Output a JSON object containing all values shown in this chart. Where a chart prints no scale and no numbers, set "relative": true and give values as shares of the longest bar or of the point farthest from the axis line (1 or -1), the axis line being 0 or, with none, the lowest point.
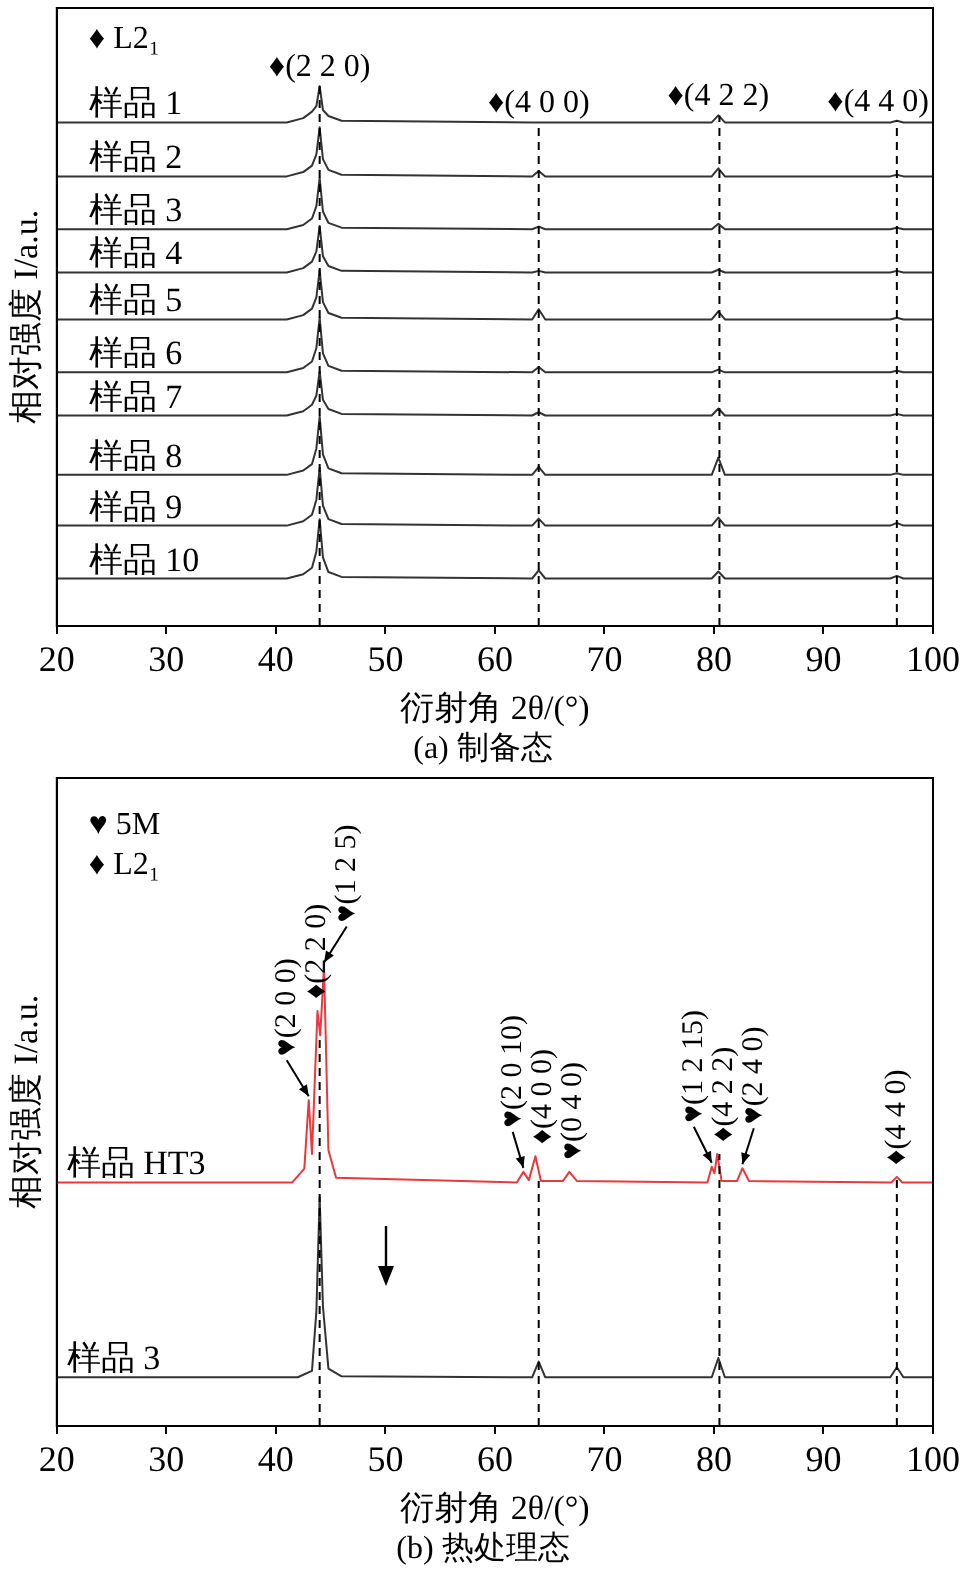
{
  "chart_data": [
    {
      "type": "line",
      "title": "(a) 制备态",
      "xlabel": "衍射角 2θ/(°)",
      "ylabel": "相对强度 I/a.u.",
      "relative": true,
      "tick_labels": "x",
      "xlim": [
        20,
        100
      ],
      "xticks": [
        20,
        30,
        40,
        50,
        60,
        70,
        80,
        90,
        100
      ],
      "x": [
        20,
        41,
        42.5,
        43.3,
        43.7,
        44.0,
        44.3,
        44.8,
        46,
        63.4,
        64.0,
        64.6,
        79.8,
        80.4,
        81.0,
        96.1,
        96.7,
        97.3,
        100
      ],
      "series": [
        {
          "name": "样品 1",
          "color": "#333333",
          "values": [
            0.933,
            0.933,
            0.941,
            0.953,
            0.963,
            1.0,
            0.956,
            0.945,
            0.936,
            0.933,
            0.933,
            0.933,
            0.933,
            0.946,
            0.933,
            0.933,
            0.936,
            0.933,
            0.933
          ]
        },
        {
          "name": "样品 2",
          "color": "#333333",
          "values": [
            0.833,
            0.833,
            0.841,
            0.853,
            0.874,
            0.924,
            0.865,
            0.845,
            0.836,
            0.833,
            0.843,
            0.833,
            0.833,
            0.848,
            0.833,
            0.833,
            0.836,
            0.833,
            0.833
          ]
        },
        {
          "name": "样品 3",
          "color": "#333333",
          "values": [
            0.735,
            0.735,
            0.743,
            0.755,
            0.778,
            0.83,
            0.768,
            0.747,
            0.738,
            0.735,
            0.74,
            0.735,
            0.735,
            0.745,
            0.735,
            0.735,
            0.738,
            0.735,
            0.735
          ]
        },
        {
          "name": "样品 4",
          "color": "#333333",
          "values": [
            0.655,
            0.655,
            0.663,
            0.675,
            0.694,
            0.741,
            0.685,
            0.667,
            0.658,
            0.655,
            0.658,
            0.655,
            0.655,
            0.66,
            0.655,
            0.655,
            0.658,
            0.655,
            0.655
          ]
        },
        {
          "name": "样品 5",
          "color": "#333333",
          "values": [
            0.568,
            0.568,
            0.576,
            0.588,
            0.609,
            0.659,
            0.6,
            0.58,
            0.571,
            0.568,
            0.587,
            0.568,
            0.568,
            0.583,
            0.568,
            0.568,
            0.571,
            0.568,
            0.568
          ]
        },
        {
          "name": "样品 6",
          "color": "#333333",
          "values": [
            0.47,
            0.47,
            0.478,
            0.49,
            0.515,
            0.571,
            0.505,
            0.482,
            0.473,
            0.47,
            0.48,
            0.47,
            0.47,
            0.475,
            0.47,
            0.47,
            0.473,
            0.47,
            0.47
          ]
        },
        {
          "name": "样品 7",
          "color": "#333333",
          "values": [
            0.39,
            0.39,
            0.398,
            0.41,
            0.427,
            0.472,
            0.419,
            0.402,
            0.393,
            0.39,
            0.396,
            0.39,
            0.39,
            0.403,
            0.39,
            0.39,
            0.393,
            0.39,
            0.39
          ]
        },
        {
          "name": "样品 8",
          "color": "#333333",
          "values": [
            0.28,
            0.28,
            0.288,
            0.3,
            0.329,
            0.388,
            0.318,
            0.292,
            0.283,
            0.28,
            0.295,
            0.28,
            0.28,
            0.312,
            0.28,
            0.28,
            0.283,
            0.28,
            0.28
          ]
        },
        {
          "name": "样品 9",
          "color": "#333333",
          "values": [
            0.186,
            0.186,
            0.194,
            0.206,
            0.234,
            0.293,
            0.223,
            0.198,
            0.189,
            0.186,
            0.199,
            0.186,
            0.186,
            0.201,
            0.186,
            0.186,
            0.191,
            0.186,
            0.186
          ]
        },
        {
          "name": "样品 10",
          "color": "#333333",
          "values": [
            0.088,
            0.088,
            0.096,
            0.108,
            0.138,
            0.198,
            0.127,
            0.1,
            0.091,
            0.088,
            0.103,
            0.088,
            0.088,
            0.101,
            0.088,
            0.088,
            0.093,
            0.088,
            0.088
          ]
        }
      ],
      "ref_lines": [
        {
          "axis": "x",
          "value": 44.0,
          "color": "#000000",
          "line_style": "dashed"
        },
        {
          "axis": "x",
          "value": 64.0,
          "color": "#000000",
          "line_style": "dashed"
        },
        {
          "axis": "x",
          "value": 80.5,
          "color": "#000000",
          "line_style": "dashed"
        },
        {
          "axis": "x",
          "value": 96.7,
          "color": "#000000",
          "line_style": "dashed"
        }
      ],
      "annotations": [
        "♦ L2₁",
        {
          "text": "♦(2 2 0)",
          "x": 44.0,
          "y": 1.0
        },
        {
          "text": "♦(4 0 0)",
          "x": 64.0,
          "y": 0.933
        },
        {
          "text": "♦(4 2 2)",
          "x": 80.4,
          "y": 0.946
        },
        {
          "text": "♦(4 4 0)",
          "x": 96.7,
          "y": 0.936
        }
      ]
    },
    {
      "type": "line",
      "title": "(b) 热处理态",
      "xlabel": "衍射角 2θ/(°)",
      "ylabel": "相对强度 I/a.u.",
      "relative": true,
      "tick_labels": "x",
      "xlim": [
        20,
        100
      ],
      "xticks": [
        20,
        30,
        40,
        50,
        60,
        70,
        80,
        90,
        100
      ],
      "series": [
        {
          "name": "样品 HT3",
          "color": "#e8393f",
          "x": [
            20,
            41.5,
            42.6,
            43.0,
            43.3,
            43.8,
            44.05,
            44.4,
            44.8,
            45.5,
            62.0,
            62.6,
            63.1,
            63.7,
            64.2,
            66.2,
            66.8,
            67.5,
            79.4,
            79.8,
            80.05,
            80.3,
            80.7,
            82.1,
            82.6,
            83.2,
            96.2,
            96.7,
            97.2,
            100
          ],
          "values": [
            0.53,
            0.53,
            0.56,
            0.709,
            0.592,
            0.903,
            0.85,
            1.0,
            0.6,
            0.54,
            0.53,
            0.553,
            0.535,
            0.587,
            0.533,
            0.533,
            0.553,
            0.533,
            0.53,
            0.564,
            0.55,
            0.592,
            0.533,
            0.533,
            0.561,
            0.533,
            0.53,
            0.542,
            0.53,
            0.53
          ]
        },
        {
          "name": "样品 3",
          "color": "#333333",
          "x": [
            20,
            42,
            43.3,
            43.7,
            44.0,
            44.3,
            44.8,
            46,
            63.4,
            64.0,
            64.6,
            79.8,
            80.4,
            81.0,
            96.1,
            96.7,
            97.3,
            100
          ],
          "values": [
            0.106,
            0.106,
            0.12,
            0.25,
            0.498,
            0.26,
            0.125,
            0.108,
            0.106,
            0.14,
            0.106,
            0.106,
            0.148,
            0.106,
            0.106,
            0.128,
            0.106,
            0.106
          ]
        }
      ],
      "ref_lines": [
        {
          "axis": "x",
          "value": 44.0,
          "color": "#000000",
          "line_style": "dashed"
        },
        {
          "axis": "x",
          "value": 64.0,
          "color": "#000000",
          "line_style": "dashed"
        },
        {
          "axis": "x",
          "value": 80.5,
          "color": "#000000",
          "line_style": "dashed"
        },
        {
          "axis": "x",
          "value": 96.7,
          "color": "#000000",
          "line_style": "dashed"
        }
      ],
      "annotations": [
        "♥ 5M",
        "♦ L2₁",
        {
          "text": "♥(2 0 0)",
          "x": 43.0,
          "y": 0.709
        },
        {
          "text": "♦(2 2 0)",
          "x": 43.8,
          "y": 0.903
        },
        {
          "text": "♥(1 2 5)",
          "x": 44.4,
          "y": 1.0
        },
        {
          "text": "♥(2 0 10)",
          "x": 62.6,
          "y": 0.553
        },
        {
          "text": "♦(4 0 0)",
          "x": 63.7,
          "y": 0.587
        },
        {
          "text": "♥(0 4 0)",
          "x": 66.8,
          "y": 0.553
        },
        {
          "text": "♥(1 2 15)",
          "x": 79.8,
          "y": 0.564
        },
        {
          "text": "♦(4 2 2)",
          "x": 80.3,
          "y": 0.592
        },
        {
          "text": "♥(2 4 0)",
          "x": 82.6,
          "y": 0.561
        },
        {
          "text": "♦(4 4 0)",
          "x": 96.7,
          "y": 0.542
        }
      ]
    }
  ]
}
